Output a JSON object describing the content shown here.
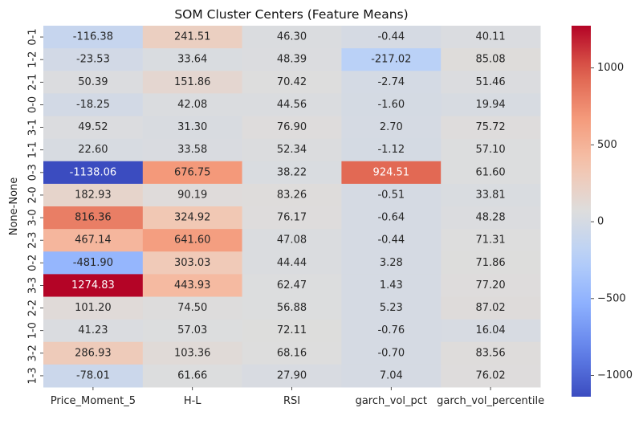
{
  "chart_data": {
    "type": "heatmap",
    "title": "SOM Cluster Centers (Feature Means)",
    "ylabel": "None-None",
    "xlabel": "",
    "columns": [
      "Price_Moment_5",
      "H-L",
      "RSI",
      "garch_vol_pct",
      "garch_vol_percentile"
    ],
    "rows": [
      "0-1",
      "1-2",
      "2-1",
      "0-0",
      "3-1",
      "1-1",
      "0-3",
      "2-0",
      "3-0",
      "2-3",
      "0-2",
      "3-3",
      "2-2",
      "1-0",
      "3-2",
      "1-3"
    ],
    "values": [
      [
        -116.38,
        241.51,
        46.3,
        -0.44,
        40.11
      ],
      [
        -23.53,
        33.64,
        48.39,
        -217.02,
        85.08
      ],
      [
        50.39,
        151.86,
        70.42,
        -2.74,
        51.46
      ],
      [
        -18.25,
        42.08,
        44.56,
        -1.6,
        19.94
      ],
      [
        49.52,
        31.3,
        76.9,
        2.7,
        75.72
      ],
      [
        22.6,
        33.58,
        52.34,
        -1.12,
        57.1
      ],
      [
        -1138.06,
        676.75,
        38.22,
        924.51,
        61.6
      ],
      [
        182.93,
        90.19,
        83.26,
        -0.51,
        33.81
      ],
      [
        816.36,
        324.92,
        76.17,
        -0.64,
        48.28
      ],
      [
        467.14,
        641.6,
        47.08,
        -0.44,
        71.31
      ],
      [
        -481.9,
        303.03,
        44.44,
        3.28,
        71.86
      ],
      [
        1274.83,
        443.93,
        62.47,
        1.43,
        77.2
      ],
      [
        101.2,
        74.5,
        56.88,
        5.23,
        87.02
      ],
      [
        41.23,
        57.03,
        72.11,
        -0.76,
        16.04
      ],
      [
        286.93,
        103.36,
        68.16,
        -0.7,
        83.56
      ],
      [
        -78.01,
        61.66,
        27.9,
        7.04,
        76.02
      ]
    ],
    "labels": [
      [
        "-116.38",
        "241.51",
        "46.30",
        "-0.44",
        "40.11"
      ],
      [
        "-23.53",
        "33.64",
        "48.39",
        "-217.02",
        "85.08"
      ],
      [
        "50.39",
        "151.86",
        "70.42",
        "-2.74",
        "51.46"
      ],
      [
        "-18.25",
        "42.08",
        "44.56",
        "-1.60",
        "19.94"
      ],
      [
        "49.52",
        "31.30",
        "76.90",
        "2.70",
        "75.72"
      ],
      [
        "22.60",
        "33.58",
        "52.34",
        "-1.12",
        "57.10"
      ],
      [
        "-1138.06",
        "676.75",
        "38.22",
        "924.51",
        "61.60"
      ],
      [
        "182.93",
        "90.19",
        "83.26",
        "-0.51",
        "33.81"
      ],
      [
        "816.36",
        "324.92",
        "76.17",
        "-0.64",
        "48.28"
      ],
      [
        "467.14",
        "641.60",
        "47.08",
        "-0.44",
        "71.31"
      ],
      [
        "-481.90",
        "303.03",
        "44.44",
        "3.28",
        "71.86"
      ],
      [
        "1274.83",
        "443.93",
        "62.47",
        "1.43",
        "77.20"
      ],
      [
        "101.20",
        "74.50",
        "56.88",
        "5.23",
        "87.02"
      ],
      [
        "41.23",
        "57.03",
        "72.11",
        "-0.76",
        "16.04"
      ],
      [
        "286.93",
        "103.36",
        "68.16",
        "-0.70",
        "83.56"
      ],
      [
        "-78.01",
        "61.66",
        "27.90",
        "7.04",
        "76.02"
      ]
    ],
    "colormap": "coolwarm",
    "vmin": -1138.06,
    "vmax": 1274.83,
    "colorbar_ticks": [
      -1000,
      -500,
      0,
      500,
      1000
    ],
    "colorbar_tick_labels": [
      "−1000",
      "−500",
      "0",
      "500",
      "1000"
    ],
    "grid": false
  }
}
